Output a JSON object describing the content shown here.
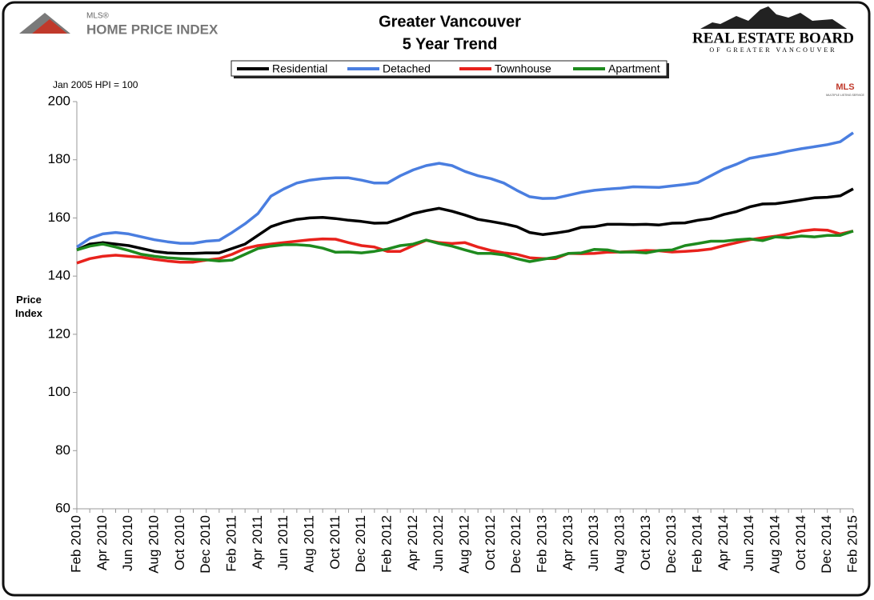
{
  "branding": {
    "mls_mark": "MLS®",
    "hpi": "HOME PRICE INDEX",
    "board": "REAL ESTATE BOARD",
    "board_sub": "OF GREATER VANCOUVER",
    "mls_logo": "MLS",
    "mls_logo_sub": "MULTIPLE LISTING SERVICE"
  },
  "chart_data": {
    "type": "line",
    "title": "Greater Vancouver",
    "subtitle": "5 Year Trend",
    "note": "Jan 2005 HPI = 100",
    "ylabel": "Price Index",
    "categories": [
      "Feb 2010",
      null,
      "Apr 2010",
      null,
      "Jun 2010",
      null,
      "Aug 2010",
      null,
      "Oct 2010",
      null,
      "Dec 2010",
      null,
      "Feb 2011",
      null,
      "Apr 2011",
      null,
      "Jun 2011",
      null,
      "Aug 2011",
      null,
      "Oct 2011",
      null,
      "Dec 2011",
      null,
      "Feb 2012",
      null,
      "Apr 2012",
      null,
      "Jun 2012",
      null,
      "Aug 2012",
      null,
      "Oct 2012",
      null,
      "Dec 2012",
      null,
      "Feb 2013",
      null,
      "Apr 2013",
      null,
      "Jun 2013",
      null,
      "Aug 2013",
      null,
      "Oct 2013",
      null,
      "Dec 2013",
      null,
      "Feb 2014",
      null,
      "Apr 2014",
      null,
      "Jun 2014",
      null,
      "Aug 2014",
      null,
      "Oct 2014",
      null,
      "Dec 2014",
      null,
      "Feb 2015"
    ],
    "series": [
      {
        "name": "Residential",
        "color": "#000000",
        "values": [
          149,
          151,
          151.5,
          151,
          150.5,
          149.5,
          148.5,
          148,
          147.8,
          147.8,
          148,
          148,
          149.5,
          151,
          154,
          157,
          158.5,
          159.5,
          160,
          160.2,
          159.8,
          159.2,
          158.8,
          158.2,
          158.3,
          159.8,
          161.5,
          162.5,
          163.3,
          162.3,
          161,
          159.5,
          158.8,
          158,
          157,
          155,
          154.3,
          154.8,
          155.5,
          156.8,
          157,
          157.8,
          157.8,
          157.7,
          157.8,
          157.6,
          158.2,
          158.3,
          159.2,
          159.8,
          161.2,
          162.2,
          163.8,
          164.8,
          164.9,
          165.5,
          166.2,
          166.9,
          167.1,
          167.6,
          170
        ]
      },
      {
        "name": "Detached",
        "color": "#4a7ee0",
        "values": [
          150,
          153,
          154.5,
          155,
          154.5,
          153.5,
          152.5,
          151.8,
          151.3,
          151.3,
          152,
          152.3,
          155,
          158,
          161.5,
          167.5,
          170,
          172,
          173,
          173.5,
          173.8,
          173.8,
          173,
          172,
          172,
          174.5,
          176.5,
          178,
          178.8,
          178,
          176,
          174.5,
          173.5,
          172,
          169.5,
          167.3,
          166.7,
          166.8,
          167.8,
          168.8,
          169.5,
          169.9,
          170.2,
          170.7,
          170.6,
          170.5,
          171,
          171.5,
          172.2,
          174.5,
          176.8,
          178.5,
          180.5,
          181.3,
          182,
          183,
          183.8,
          184.5,
          185.2,
          186.2,
          189.3
        ]
      },
      {
        "name": "Townhouse",
        "color": "#e8221c",
        "values": [
          144.5,
          146,
          146.8,
          147.2,
          146.8,
          146.5,
          145.8,
          145.2,
          144.8,
          144.8,
          145.5,
          146,
          147.5,
          149.5,
          150.5,
          151,
          151.5,
          152,
          152.5,
          152.8,
          152.7,
          151.5,
          150.5,
          150,
          148.5,
          148.5,
          150.5,
          152.3,
          151.5,
          151.2,
          151.5,
          150,
          148.8,
          148,
          147.5,
          146.3,
          146,
          146,
          147.8,
          147.7,
          147.8,
          148.2,
          148.3,
          148.5,
          148.8,
          148.7,
          148.3,
          148.5,
          148.8,
          149.3,
          150.5,
          151.5,
          152.5,
          153.2,
          153.7,
          154.5,
          155.5,
          156,
          155.8,
          154.5,
          155.5
        ]
      },
      {
        "name": "Apartment",
        "color": "#1e8a1e",
        "values": [
          149,
          150.3,
          151,
          150,
          148.8,
          147.5,
          146.8,
          146.3,
          146,
          145.8,
          145.6,
          145.2,
          145.5,
          147.5,
          149.5,
          150.3,
          150.8,
          150.8,
          150.5,
          149.6,
          148.2,
          148.3,
          148,
          148.5,
          149.3,
          150.5,
          151,
          152.4,
          151.2,
          150.3,
          149,
          147.8,
          147.8,
          147.3,
          146,
          145,
          145.8,
          146.5,
          147.8,
          148,
          149.2,
          149,
          148.2,
          148.3,
          148,
          148.8,
          149,
          150.5,
          151.2,
          152,
          152,
          152.5,
          152.8,
          152.2,
          153.5,
          153.2,
          153.8,
          153.5,
          154,
          154,
          155.5
        ]
      }
    ],
    "ylim": [
      60,
      200
    ],
    "yticks": [
      60,
      80,
      100,
      120,
      140,
      160,
      180,
      200
    ],
    "grid": false,
    "legend": "top"
  }
}
